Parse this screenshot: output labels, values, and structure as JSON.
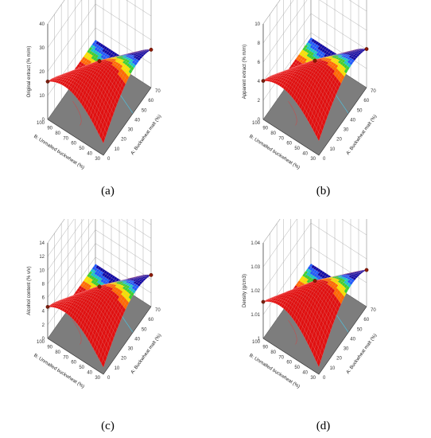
{
  "chart_data": [
    {
      "type": "surface",
      "panel_label": "(a)",
      "xlabel": "A: Buckwheat malt (%)",
      "ylabel": "B: Unmalted buckwheat (%)",
      "zlabel": "Original extract (% m/m)",
      "x_ticks": [
        "0",
        "10",
        "20",
        "30",
        "40",
        "50",
        "60",
        "70"
      ],
      "y_ticks": [
        "30",
        "40",
        "50",
        "60",
        "70",
        "80",
        "90",
        "100"
      ],
      "z_ticks": [
        "0",
        "10",
        "20",
        "30",
        "40"
      ],
      "xlim": [
        0,
        70
      ],
      "ylim": [
        30,
        100
      ],
      "zlim": [
        0,
        40
      ],
      "peak": 20,
      "low": 5
    },
    {
      "type": "surface",
      "panel_label": "(b)",
      "xlabel": "A: Buckwheat malt (%)",
      "ylabel": "B: Unmalted buckwheat (%)",
      "zlabel": "Apparent extract (% m/m)",
      "x_ticks": [
        "0",
        "10",
        "20",
        "30",
        "40",
        "50",
        "60",
        "70"
      ],
      "y_ticks": [
        "30",
        "40",
        "50",
        "60",
        "70",
        "80",
        "90",
        "100"
      ],
      "z_ticks": [
        "0",
        "2",
        "4",
        "6",
        "8",
        "10"
      ],
      "xlim": [
        0,
        70
      ],
      "ylim": [
        30,
        100
      ],
      "zlim": [
        0,
        10
      ],
      "peak": 5,
      "low": 1.5
    },
    {
      "type": "surface",
      "panel_label": "(c)",
      "xlabel": "A: Buckwheat malt (%)",
      "ylabel": "B: Unmalted buckwheat (%)",
      "zlabel": "Alcohol content (% v/v)",
      "x_ticks": [
        "0",
        "10",
        "20",
        "30",
        "40",
        "50",
        "60",
        "70"
      ],
      "y_ticks": [
        "30",
        "40",
        "50",
        "60",
        "70",
        "80",
        "90",
        "100"
      ],
      "z_ticks": [
        "0",
        "2",
        "4",
        "6",
        "8",
        "10",
        "12",
        "14"
      ],
      "xlim": [
        0,
        70
      ],
      "ylim": [
        30,
        100
      ],
      "zlim": [
        0,
        14
      ],
      "peak": 6,
      "low": 1
    },
    {
      "type": "surface",
      "panel_label": "(d)",
      "xlabel": "A: Buckwheat malt (%)",
      "ylabel": "B: Unmalted buckwheat (%)",
      "zlabel": "Density (g/cm3)",
      "x_ticks": [
        "0",
        "10",
        "20",
        "30",
        "40",
        "50",
        "60",
        "70"
      ],
      "y_ticks": [
        "30",
        "40",
        "50",
        "60",
        "70",
        "80",
        "90",
        "100"
      ],
      "z_ticks": [
        "1",
        "1.01",
        "1.02",
        "1.03",
        "1.04"
      ],
      "xlim": [
        0,
        70
      ],
      "ylim": [
        30,
        100
      ],
      "zlim": [
        1,
        1.04
      ],
      "peak": 1.02,
      "low": 1.003
    }
  ]
}
